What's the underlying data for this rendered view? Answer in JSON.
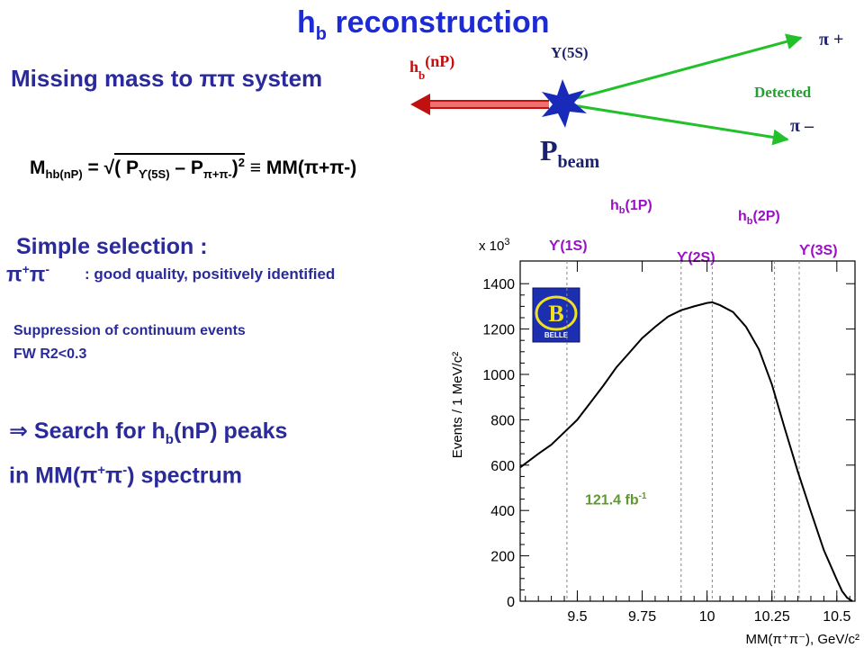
{
  "slide": {
    "title_main": "h",
    "title_sub": "b",
    "title_rest": " reconstruction",
    "missing_mass": "Missing mass to ππ system",
    "formula": {
      "lhs_main": "M",
      "lhs_sub": "hb(nP)",
      "eq": " = √",
      "p_open": " ( P",
      "p1_sub": "ϒ(5S)",
      "minus": " – P",
      "p2_sub": "π+π-",
      "close": ")",
      "exp": "2",
      "equiv": " ≡ MM(π+π-)"
    },
    "simple_selection": "Simple selection :",
    "pipi_main": "π",
    "pipi_sup1": "+",
    "pipi_pi2": "π",
    "pipi_sup2": "-",
    "good_quality": ":  good quality, positively identified",
    "suppression": "Suppression of continuum events",
    "fw_cut": "FW R2<0.3",
    "search_arrow": "⇒ Search for h",
    "search_sub": "b",
    "search_rest": "(nP) peaks",
    "spectrum_pre": "in MM(π",
    "spectrum_sup1": "+",
    "spectrum_pi": "π",
    "spectrum_sup2": "-",
    "spectrum_post": ") spectrum"
  },
  "diagram": {
    "hb_label_main": "h",
    "hb_label_sub": "b",
    "hb_label_rest": "(nP)",
    "y5s_label": "Y(5S)",
    "pi_plus": "π +",
    "pi_minus": "π –",
    "detected": "Detected",
    "pbeam_main": "P",
    "pbeam_sub": "beam"
  },
  "plot_labels": {
    "y1s": "ϒ(1S)",
    "y2s": "ϒ(2S)",
    "y3s": "ϒ(3S)",
    "hb1p_main": "h",
    "hb1p_sub": "b",
    "hb1p_rest": "(1P)",
    "hb2p_main": "h",
    "hb2p_sub": "b",
    "hb2p_rest": "(2P)",
    "lumi_main": "121.4 fb",
    "lumi_sup": "-1",
    "x10_pre": "x 10",
    "x10_exp": "3",
    "ylabel": "Events / 1 MeV/c²",
    "xlabel": "MM(π⁺π⁻), GeV/c²",
    "belle_text": "BELLE",
    "belle_letter": "B"
  },
  "chart_data": {
    "type": "line",
    "title": "",
    "xlabel": "MM(π⁺π⁻), GeV/c²",
    "ylabel": "Events / 1 MeV/c²",
    "y_multiplier": "x 10^3",
    "xlim": [
      9.28,
      10.57
    ],
    "ylim": [
      0,
      1500
    ],
    "x_ticks": [
      9.5,
      9.75,
      10,
      10.25,
      10.5
    ],
    "x_tick_labels": [
      "9.5",
      "9.75",
      "10",
      "10.25",
      "10.5"
    ],
    "y_ticks": [
      0,
      200,
      400,
      600,
      800,
      1000,
      1200,
      1400
    ],
    "y_tick_labels": [
      "0",
      "200",
      "400",
      "600",
      "800",
      "1000",
      "1200",
      "1400"
    ],
    "series": [
      {
        "x": [
          9.28,
          9.35,
          9.4,
          9.45,
          9.5,
          9.55,
          9.6,
          9.65,
          9.7,
          9.75,
          9.8,
          9.85,
          9.9,
          9.95,
          10.0,
          10.02,
          10.05,
          10.1,
          10.15,
          10.2,
          10.25,
          10.3,
          10.35,
          10.4,
          10.45,
          10.5,
          10.52,
          10.54,
          10.56
        ],
        "y": [
          590,
          650,
          690,
          745,
          800,
          875,
          950,
          1030,
          1095,
          1160,
          1210,
          1255,
          1283,
          1300,
          1315,
          1318,
          1305,
          1275,
          1210,
          1110,
          955,
          760,
          570,
          395,
          225,
          95,
          45,
          15,
          0
        ]
      }
    ],
    "reference_lines_x": [
      9.46,
      9.9,
      10.02,
      10.26,
      10.355
    ],
    "grid": false,
    "annotations": [
      "ϒ(1S)",
      "h_b(1P)",
      "ϒ(2S)",
      "h_b(2P)",
      "ϒ(3S)",
      "121.4 fb^-1"
    ]
  }
}
